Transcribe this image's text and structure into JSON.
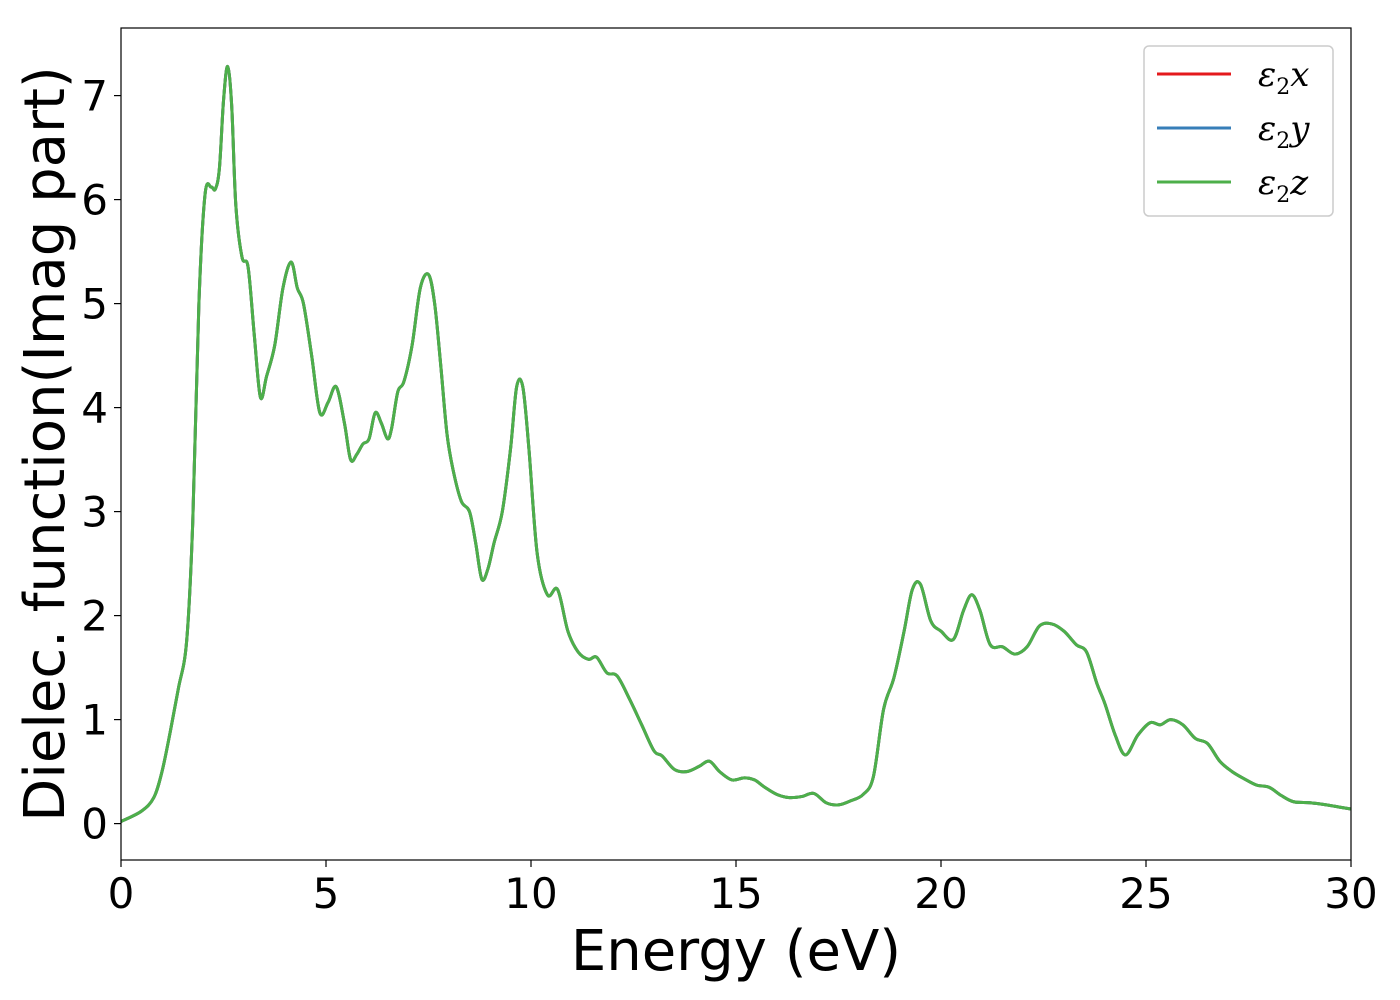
{
  "chart_data": {
    "type": "line",
    "xlabel": "Energy (eV)",
    "ylabel": "Dielec. function(Imag part)",
    "xlim": [
      0,
      30
    ],
    "ylim": [
      -0.35,
      7.65
    ],
    "xticks": [
      0,
      5,
      10,
      15,
      20,
      25,
      30
    ],
    "yticks": [
      0,
      1,
      2,
      3,
      4,
      5,
      6,
      7
    ],
    "grid": false,
    "legend_position": "top-right",
    "x": [
      0,
      0.5,
      0.8,
      1.0,
      1.2,
      1.4,
      1.6,
      1.75,
      1.9,
      2.05,
      2.2,
      2.3,
      2.4,
      2.5,
      2.6,
      2.7,
      2.8,
      2.95,
      3.1,
      3.25,
      3.4,
      3.55,
      3.75,
      3.95,
      4.15,
      4.3,
      4.45,
      4.65,
      4.85,
      5.05,
      5.25,
      5.45,
      5.6,
      5.75,
      5.9,
      6.05,
      6.2,
      6.35,
      6.5,
      6.6,
      6.75,
      6.9,
      7.1,
      7.3,
      7.5,
      7.65,
      7.8,
      7.95,
      8.1,
      8.3,
      8.5,
      8.65,
      8.8,
      8.95,
      9.1,
      9.3,
      9.5,
      9.65,
      9.8,
      9.95,
      10.15,
      10.4,
      10.65,
      10.9,
      11.15,
      11.4,
      11.6,
      11.85,
      12.1,
      12.4,
      12.7,
      13.0,
      13.2,
      13.5,
      13.8,
      14.1,
      14.35,
      14.6,
      14.9,
      15.2,
      15.45,
      15.7,
      16.0,
      16.3,
      16.6,
      16.9,
      17.2,
      17.5,
      17.8,
      18.1,
      18.35,
      18.6,
      18.85,
      19.1,
      19.3,
      19.5,
      19.75,
      20.0,
      20.3,
      20.55,
      20.75,
      20.95,
      21.2,
      21.5,
      21.8,
      22.1,
      22.4,
      22.7,
      23.0,
      23.3,
      23.55,
      23.8,
      24.0,
      24.25,
      24.5,
      24.8,
      25.1,
      25.35,
      25.6,
      25.9,
      26.2,
      26.5,
      26.8,
      27.1,
      27.4,
      27.7,
      28.0,
      28.3,
      28.6,
      29.0,
      29.4,
      29.7,
      30.0
    ],
    "series": [
      {
        "name": "ε₂x",
        "color": "#e41a1c",
        "values": [
          0.02,
          0.12,
          0.25,
          0.5,
          0.88,
          1.3,
          1.75,
          2.9,
          5.0,
          6.05,
          6.12,
          6.1,
          6.3,
          6.95,
          7.28,
          6.9,
          5.95,
          5.45,
          5.35,
          4.7,
          4.1,
          4.3,
          4.6,
          5.15,
          5.4,
          5.15,
          5.0,
          4.5,
          3.95,
          4.05,
          4.2,
          3.85,
          3.5,
          3.55,
          3.65,
          3.7,
          3.95,
          3.85,
          3.7,
          3.8,
          4.15,
          4.25,
          4.6,
          5.15,
          5.28,
          5.0,
          4.4,
          3.75,
          3.4,
          3.1,
          3.0,
          2.7,
          2.35,
          2.45,
          2.7,
          3.0,
          3.6,
          4.2,
          4.2,
          3.6,
          2.6,
          2.2,
          2.25,
          1.85,
          1.65,
          1.58,
          1.6,
          1.45,
          1.42,
          1.2,
          0.95,
          0.7,
          0.65,
          0.52,
          0.5,
          0.55,
          0.6,
          0.5,
          0.42,
          0.44,
          0.42,
          0.35,
          0.28,
          0.25,
          0.26,
          0.29,
          0.2,
          0.18,
          0.22,
          0.28,
          0.45,
          1.1,
          1.4,
          1.85,
          2.25,
          2.3,
          1.95,
          1.85,
          1.77,
          2.05,
          2.2,
          2.05,
          1.72,
          1.7,
          1.63,
          1.7,
          1.9,
          1.92,
          1.85,
          1.72,
          1.65,
          1.35,
          1.15,
          0.85,
          0.66,
          0.85,
          0.97,
          0.95,
          1.0,
          0.95,
          0.82,
          0.77,
          0.6,
          0.5,
          0.43,
          0.37,
          0.35,
          0.27,
          0.21,
          0.2,
          0.18,
          0.16,
          0.14
        ]
      },
      {
        "name": "ε₂y",
        "color": "#377eb8",
        "values": [
          0.02,
          0.12,
          0.25,
          0.5,
          0.88,
          1.3,
          1.75,
          2.9,
          5.0,
          6.05,
          6.12,
          6.1,
          6.3,
          6.95,
          7.28,
          6.9,
          5.95,
          5.45,
          5.35,
          4.7,
          4.1,
          4.3,
          4.6,
          5.15,
          5.4,
          5.15,
          5.0,
          4.5,
          3.95,
          4.05,
          4.2,
          3.85,
          3.5,
          3.55,
          3.65,
          3.7,
          3.95,
          3.85,
          3.7,
          3.8,
          4.15,
          4.25,
          4.6,
          5.15,
          5.28,
          5.0,
          4.4,
          3.75,
          3.4,
          3.1,
          3.0,
          2.7,
          2.35,
          2.45,
          2.7,
          3.0,
          3.6,
          4.2,
          4.2,
          3.6,
          2.6,
          2.2,
          2.25,
          1.85,
          1.65,
          1.58,
          1.6,
          1.45,
          1.42,
          1.2,
          0.95,
          0.7,
          0.65,
          0.52,
          0.5,
          0.55,
          0.6,
          0.5,
          0.42,
          0.44,
          0.42,
          0.35,
          0.28,
          0.25,
          0.26,
          0.29,
          0.2,
          0.18,
          0.22,
          0.28,
          0.45,
          1.1,
          1.4,
          1.85,
          2.25,
          2.3,
          1.95,
          1.85,
          1.77,
          2.05,
          2.2,
          2.05,
          1.72,
          1.7,
          1.63,
          1.7,
          1.9,
          1.92,
          1.85,
          1.72,
          1.65,
          1.35,
          1.15,
          0.85,
          0.66,
          0.85,
          0.97,
          0.95,
          1.0,
          0.95,
          0.82,
          0.77,
          0.6,
          0.5,
          0.43,
          0.37,
          0.35,
          0.27,
          0.21,
          0.2,
          0.18,
          0.16,
          0.14
        ]
      },
      {
        "name": "ε₂z",
        "color": "#4daf4a",
        "values": [
          0.02,
          0.12,
          0.25,
          0.5,
          0.88,
          1.3,
          1.75,
          2.9,
          5.0,
          6.05,
          6.12,
          6.1,
          6.3,
          6.95,
          7.28,
          6.9,
          5.95,
          5.45,
          5.35,
          4.7,
          4.1,
          4.3,
          4.6,
          5.15,
          5.4,
          5.15,
          5.0,
          4.5,
          3.95,
          4.05,
          4.2,
          3.85,
          3.5,
          3.55,
          3.65,
          3.7,
          3.95,
          3.85,
          3.7,
          3.8,
          4.15,
          4.25,
          4.6,
          5.15,
          5.28,
          5.0,
          4.4,
          3.75,
          3.4,
          3.1,
          3.0,
          2.7,
          2.35,
          2.45,
          2.7,
          3.0,
          3.6,
          4.2,
          4.2,
          3.6,
          2.6,
          2.2,
          2.25,
          1.85,
          1.65,
          1.58,
          1.6,
          1.45,
          1.42,
          1.2,
          0.95,
          0.7,
          0.65,
          0.52,
          0.5,
          0.55,
          0.6,
          0.5,
          0.42,
          0.44,
          0.42,
          0.35,
          0.28,
          0.25,
          0.26,
          0.29,
          0.2,
          0.18,
          0.22,
          0.28,
          0.45,
          1.1,
          1.4,
          1.85,
          2.25,
          2.3,
          1.95,
          1.85,
          1.77,
          2.05,
          2.2,
          2.05,
          1.72,
          1.7,
          1.63,
          1.7,
          1.9,
          1.92,
          1.85,
          1.72,
          1.65,
          1.35,
          1.15,
          0.85,
          0.66,
          0.85,
          0.97,
          0.95,
          1.0,
          0.95,
          0.82,
          0.77,
          0.6,
          0.5,
          0.43,
          0.37,
          0.35,
          0.27,
          0.21,
          0.2,
          0.18,
          0.16,
          0.14
        ]
      }
    ]
  }
}
